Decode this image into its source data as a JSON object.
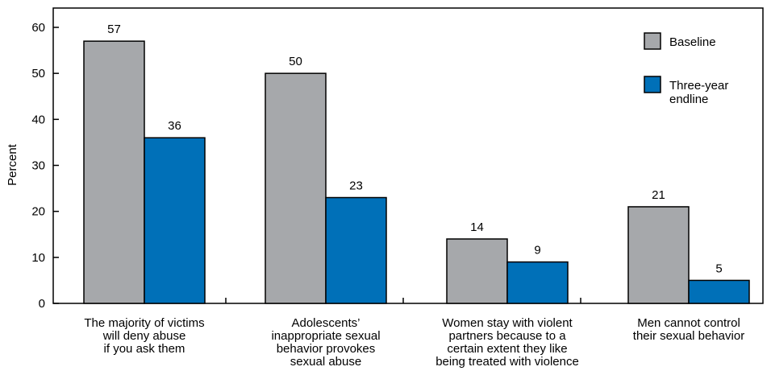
{
  "chart_data": {
    "type": "bar",
    "ylabel": "Percent",
    "ylim": [
      0,
      60
    ],
    "yticks": [
      0,
      10,
      20,
      30,
      40,
      50,
      60
    ],
    "legend_position": "top-right",
    "grid": false,
    "categories": [
      [
        "The majority of victims",
        "will deny abuse",
        "if you ask them"
      ],
      [
        "Adolescents’",
        "inappropriate sexual",
        "behavior provokes",
        "sexual abuse"
      ],
      [
        "Women stay with violent",
        "partners because to a",
        "certain extent they like",
        "being treated with violence"
      ],
      [
        "Men cannot control",
        "their sexual behavior"
      ]
    ],
    "series": [
      {
        "name": [
          "Baseline"
        ],
        "color": "#a6a8ab",
        "values": [
          57,
          50,
          14,
          21
        ]
      },
      {
        "name": [
          "Three-year",
          "endline"
        ],
        "color": "#0070b8",
        "values": [
          36,
          23,
          9,
          5
        ]
      }
    ]
  }
}
